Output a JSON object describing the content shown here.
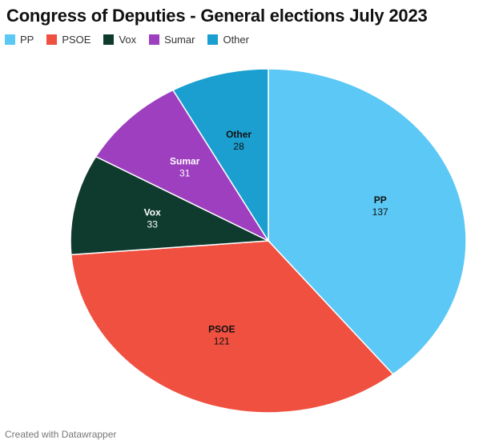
{
  "chart_data": {
    "type": "pie",
    "title": "Congress of Deputies - General elections July 2023",
    "categories": [
      "PP",
      "PSOE",
      "Vox",
      "Sumar",
      "Other"
    ],
    "values": [
      137,
      121,
      33,
      31,
      28
    ],
    "colors": [
      "#5bc8f5",
      "#ef5040",
      "#0f3b2e",
      "#9d3fbf",
      "#1a9fd0"
    ],
    "label_colors": [
      "#111111",
      "#111111",
      "#ffffff",
      "#ffffff",
      "#111111"
    ],
    "legend": [
      "PP",
      "PSOE",
      "Vox",
      "Sumar",
      "Other"
    ],
    "legend_position": "top-left",
    "start": "12 o'clock",
    "direction": "clockwise"
  },
  "footer": "Created with Datawrapper"
}
